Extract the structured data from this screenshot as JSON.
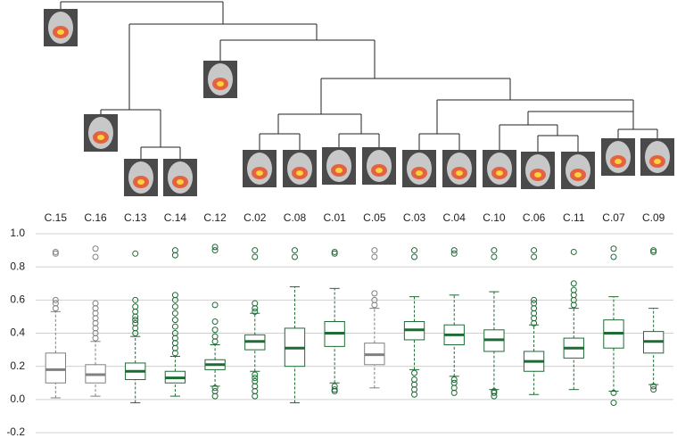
{
  "chart_data": {
    "type": "boxplot",
    "ylim": [
      -0.2,
      1.0
    ],
    "yticks": [
      -0.2,
      {
        "value": 0.0,
        "label": "0.0"
      },
      0.2,
      0.4,
      0.6,
      0.8,
      {
        "value": 1.0,
        "label": "1.0"
      }
    ],
    "grid": true,
    "boxes": [
      {
        "name": "C.15",
        "color": "#808080",
        "low": 0.01,
        "q1": 0.1,
        "median": 0.18,
        "q3": 0.28,
        "high": 0.53,
        "outliers": [
          0.55,
          0.58,
          0.6,
          0.88,
          0.89
        ]
      },
      {
        "name": "C.16",
        "color": "#808080",
        "low": 0.02,
        "q1": 0.1,
        "median": 0.15,
        "q3": 0.21,
        "high": 0.35,
        "outliers": [
          0.37,
          0.4,
          0.43,
          0.46,
          0.49,
          0.52,
          0.55,
          0.58,
          0.86,
          0.91
        ]
      },
      {
        "name": "C.13",
        "color": "#1e6b34",
        "low": -0.02,
        "q1": 0.12,
        "median": 0.17,
        "q3": 0.22,
        "high": 0.38,
        "outliers": [
          0.4,
          0.43,
          0.46,
          0.48,
          0.5,
          0.53,
          0.56,
          0.6,
          0.88
        ]
      },
      {
        "name": "C.14",
        "color": "#1e6b34",
        "low": 0.02,
        "q1": 0.1,
        "median": 0.13,
        "q3": 0.17,
        "high": 0.26,
        "outliers": [
          0.28,
          0.31,
          0.34,
          0.37,
          0.4,
          0.44,
          0.48,
          0.52,
          0.56,
          0.6,
          0.63,
          0.87,
          0.9
        ]
      },
      {
        "name": "C.12",
        "color": "#1e6b34",
        "low": 0.08,
        "q1": 0.18,
        "median": 0.21,
        "q3": 0.24,
        "high": 0.33,
        "outliers": [
          0.02,
          0.05,
          0.07,
          0.35,
          0.38,
          0.42,
          0.47,
          0.57,
          0.9,
          0.92
        ]
      },
      {
        "name": "C.02",
        "color": "#1e6b34",
        "low": 0.17,
        "q1": 0.3,
        "median": 0.35,
        "q3": 0.39,
        "high": 0.52,
        "outliers": [
          0.02,
          0.05,
          0.08,
          0.11,
          0.13,
          0.15,
          0.53,
          0.55,
          0.58,
          0.86,
          0.9
        ]
      },
      {
        "name": "C.08",
        "color": "#1e6b34",
        "low": -0.02,
        "q1": 0.2,
        "median": 0.31,
        "q3": 0.43,
        "high": 0.68,
        "outliers": [
          0.86,
          0.9
        ]
      },
      {
        "name": "C.01",
        "color": "#1e6b34",
        "low": 0.1,
        "q1": 0.32,
        "median": 0.4,
        "q3": 0.47,
        "high": 0.67,
        "outliers": [
          0.05,
          0.06,
          0.08,
          0.88,
          0.89
        ]
      },
      {
        "name": "C.05",
        "color": "#808080",
        "low": 0.07,
        "q1": 0.21,
        "median": 0.27,
        "q3": 0.34,
        "high": 0.55,
        "outliers": [
          0.57,
          0.6,
          0.64,
          0.86,
          0.9
        ]
      },
      {
        "name": "C.03",
        "color": "#1e6b34",
        "low": 0.18,
        "q1": 0.36,
        "median": 0.42,
        "q3": 0.47,
        "high": 0.62,
        "outliers": [
          0.03,
          0.06,
          0.09,
          0.12,
          0.16,
          0.86,
          0.9
        ]
      },
      {
        "name": "C.04",
        "color": "#1e6b34",
        "low": 0.14,
        "q1": 0.33,
        "median": 0.39,
        "q3": 0.45,
        "high": 0.63,
        "outliers": [
          0.04,
          0.07,
          0.1,
          0.12,
          0.88,
          0.9
        ]
      },
      {
        "name": "C.10",
        "color": "#1e6b34",
        "low": 0.06,
        "q1": 0.29,
        "median": 0.36,
        "q3": 0.42,
        "high": 0.65,
        "outliers": [
          0.02,
          0.04,
          0.05,
          0.86,
          0.9
        ]
      },
      {
        "name": "C.06",
        "color": "#1e6b34",
        "low": 0.03,
        "q1": 0.17,
        "median": 0.23,
        "q3": 0.29,
        "high": 0.45,
        "outliers": [
          0.46,
          0.49,
          0.52,
          0.55,
          0.58,
          0.6,
          0.86,
          0.9
        ]
      },
      {
        "name": "C.11",
        "color": "#1e6b34",
        "low": 0.06,
        "q1": 0.25,
        "median": 0.31,
        "q3": 0.37,
        "high": 0.55,
        "outliers": [
          0.57,
          0.6,
          0.63,
          0.66,
          0.7,
          0.89
        ]
      },
      {
        "name": "C.07",
        "color": "#1e6b34",
        "low": 0.05,
        "q1": 0.31,
        "median": 0.4,
        "q3": 0.48,
        "high": 0.62,
        "outliers": [
          -0.02,
          0.04,
          0.86,
          0.91
        ]
      },
      {
        "name": "C.09",
        "color": "#1e6b34",
        "low": 0.09,
        "q1": 0.28,
        "median": 0.35,
        "q3": 0.41,
        "high": 0.55,
        "outliers": [
          0.06,
          0.08,
          0.89,
          0.9
        ]
      }
    ]
  }
}
